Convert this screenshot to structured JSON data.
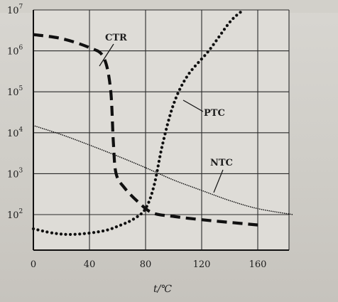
{
  "chart_data": {
    "type": "line",
    "xlabel": "t/℃",
    "x_ticks": [
      {
        "value": 0,
        "label": "0"
      },
      {
        "value": 40,
        "label": "40"
      },
      {
        "value": 80,
        "label": "80"
      },
      {
        "value": 120,
        "label": "120"
      },
      {
        "value": 160,
        "label": "160"
      }
    ],
    "y_scale": "log",
    "y_ticks": [
      {
        "exp": 2,
        "base": "10",
        "sup": "2"
      },
      {
        "exp": 3,
        "base": "10",
        "sup": "3"
      },
      {
        "exp": 4,
        "base": "10",
        "sup": "4"
      },
      {
        "exp": 5,
        "base": "10",
        "sup": "5"
      },
      {
        "exp": 6,
        "base": "10",
        "sup": "6"
      },
      {
        "exp": 7,
        "base": "10",
        "sup": "7"
      }
    ],
    "xlim": [
      0,
      160
    ],
    "ylim_log10": [
      1.5,
      7
    ],
    "grid": true,
    "series": [
      {
        "name": "CTR",
        "style": "long-dash",
        "points": [
          [
            0,
            2500000
          ],
          [
            20,
            2000000
          ],
          [
            40,
            1200000
          ],
          [
            50,
            700000
          ],
          [
            55,
            120000
          ],
          [
            57,
            6000
          ],
          [
            59,
            1000
          ],
          [
            65,
            450
          ],
          [
            75,
            200
          ],
          [
            85,
            110
          ],
          [
            100,
            90
          ],
          [
            120,
            75
          ],
          [
            150,
            60
          ],
          [
            162,
            55
          ]
        ]
      },
      {
        "name": "PTC",
        "style": "dotted",
        "points": [
          [
            0,
            45
          ],
          [
            15,
            35
          ],
          [
            30,
            33
          ],
          [
            50,
            40
          ],
          [
            62,
            55
          ],
          [
            72,
            80
          ],
          [
            80,
            140
          ],
          [
            86,
            500
          ],
          [
            92,
            5000
          ],
          [
            100,
            50000
          ],
          [
            110,
            250000
          ],
          [
            125,
            1000000
          ],
          [
            140,
            5000000
          ],
          [
            148,
            9000000
          ]
        ]
      },
      {
        "name": "NTC",
        "style": "thin-dotted",
        "points": [
          [
            0,
            15000
          ],
          [
            20,
            9000
          ],
          [
            40,
            5000
          ],
          [
            60,
            2700
          ],
          [
            80,
            1400
          ],
          [
            100,
            700
          ],
          [
            120,
            390
          ],
          [
            140,
            220
          ],
          [
            160,
            140
          ],
          [
            185,
            100
          ]
        ]
      }
    ],
    "colors": {
      "curve": "#101010",
      "grid": "#2a2a2a",
      "axis": "#101010"
    }
  }
}
